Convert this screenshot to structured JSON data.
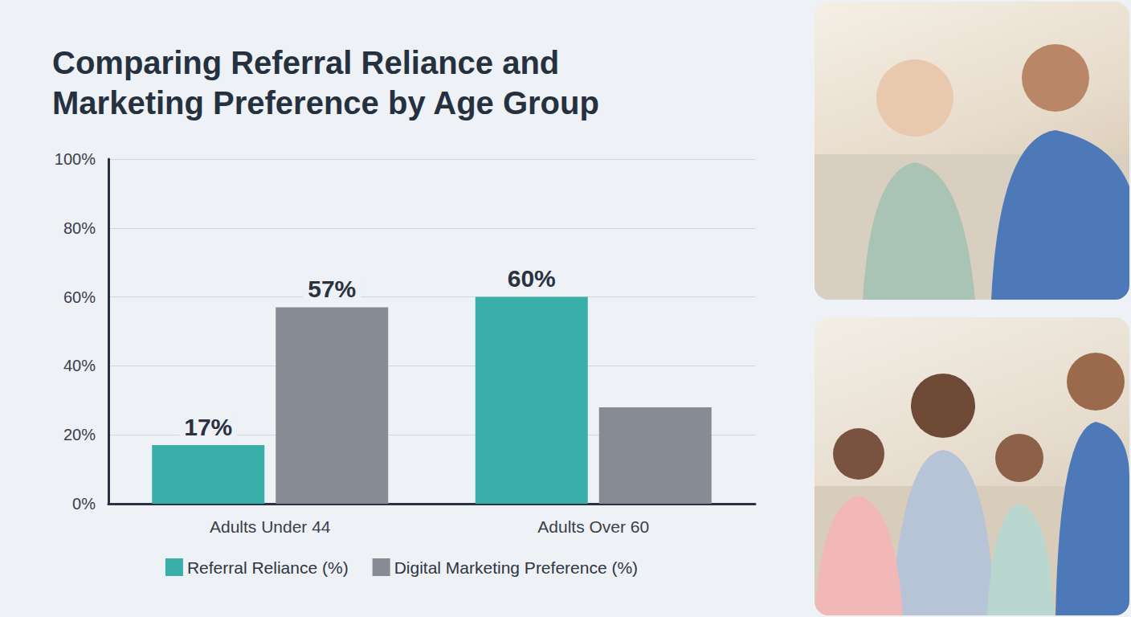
{
  "chart_data": {
    "type": "bar",
    "title": "Comparing Referral Reliance and Marketing Preference by Age Group",
    "categories": [
      "Adults Under 44",
      "Adults Over 60"
    ],
    "series": [
      {
        "name": "Referral Reliance (%)",
        "color": "#3aafa9",
        "values": [
          17,
          60
        ],
        "value_labels": [
          "17%",
          "60%"
        ]
      },
      {
        "name": "Digital Marketing Preference (%)",
        "color": "#868b94",
        "values": [
          57,
          28
        ],
        "value_labels": [
          "57%",
          null
        ]
      }
    ],
    "ylim": [
      0,
      100
    ],
    "yticks": [
      {
        "value": 0,
        "label": "0%"
      },
      {
        "value": 20,
        "label": "20%"
      },
      {
        "value": 40,
        "label": "40%"
      },
      {
        "value": 60,
        "label": "60%"
      },
      {
        "value": 80,
        "label": "80%"
      },
      {
        "value": 100,
        "label": "100%"
      }
    ],
    "grid": true,
    "legend": "bottom",
    "data_labels": true
  }
}
